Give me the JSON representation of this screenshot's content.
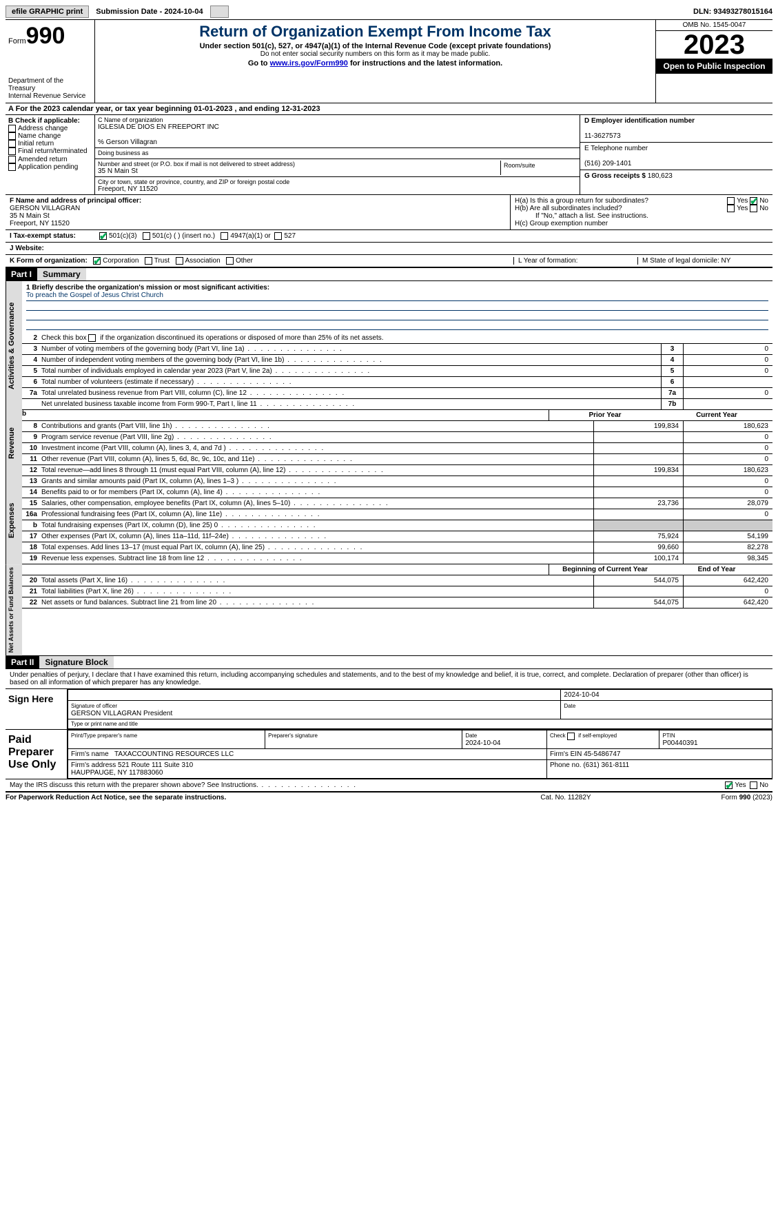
{
  "topbar": {
    "efile": "efile GRAPHIC print",
    "submission": "Submission Date - 2024-10-04",
    "dln": "DLN: 93493278015164"
  },
  "header": {
    "form_prefix": "Form",
    "form_num": "990",
    "dept": "Department of the Treasury\nInternal Revenue Service",
    "title": "Return of Organization Exempt From Income Tax",
    "line1": "Under section 501(c), 527, or 4947(a)(1) of the Internal Revenue Code (except private foundations)",
    "line2": "Do not enter social security numbers on this form as it may be made public.",
    "line3_pre": "Go to ",
    "line3_link": "www.irs.gov/Form990",
    "line3_post": " for instructions and the latest information.",
    "omb": "OMB No. 1545-0047",
    "year": "2023",
    "open": "Open to Public Inspection"
  },
  "rowA": "A For the 2023 calendar year, or tax year beginning 01-01-2023   , and ending 12-31-2023",
  "boxB": {
    "label": "B Check if applicable:",
    "items": [
      "Address change",
      "Name change",
      "Initial return",
      "Final return/terminated",
      "Amended return",
      "Application pending"
    ]
  },
  "boxC": {
    "label": "C Name of organization",
    "name": "IGLESIA DE DIOS EN FREEPORT INC",
    "care": "% Gerson Villagran",
    "dba_label": "Doing business as",
    "addr_label": "Number and street (or P.O. box if mail is not delivered to street address)",
    "room_label": "Room/suite",
    "addr": "35 N Main St",
    "city_label": "City or town, state or province, country, and ZIP or foreign postal code",
    "city": "Freeport, NY  11520"
  },
  "boxD": {
    "label": "D Employer identification number",
    "val": "11-3627573"
  },
  "boxE": {
    "label": "E Telephone number",
    "val": "(516) 209-1401"
  },
  "boxG": {
    "label": "G Gross receipts $",
    "val": "180,623"
  },
  "boxF": {
    "label": "F  Name and address of principal officer:",
    "name": "GERSON VILLAGRAN",
    "addr1": "35 N Main St",
    "addr2": "Freeport, NY  11520"
  },
  "boxH": {
    "a": "H(a)  Is this a group return for subordinates?",
    "b": "H(b)  Are all subordinates included?",
    "bnote": "If \"No,\" attach a list. See instructions.",
    "c": "H(c)  Group exemption number"
  },
  "rowI": {
    "label": "I  Tax-exempt status:",
    "o1": "501(c)(3)",
    "o2": "501(c) (  ) (insert no.)",
    "o3": "4947(a)(1) or",
    "o4": "527"
  },
  "rowJ": "J  Website:",
  "rowK": {
    "label": "K Form of organization:",
    "opts": [
      "Corporation",
      "Trust",
      "Association",
      "Other"
    ],
    "L": "L Year of formation:",
    "M": "M State of legal domicile: NY"
  },
  "part1": {
    "num": "Part I",
    "title": "Summary"
  },
  "sections": {
    "gov": "Activities & Governance",
    "rev": "Revenue",
    "exp": "Expenses",
    "net": "Net Assets or Fund Balances"
  },
  "line1": {
    "label": "1  Briefly describe the organization's mission or most significant activities:",
    "text": "To preach the Gospel of Jesus Christ Church"
  },
  "line2": "Check this box       if the organization discontinued its operations or disposed of more than 25% of its net assets.",
  "govrows": [
    {
      "n": "3",
      "t": "Number of voting members of the governing body (Part VI, line 1a)",
      "b": "3",
      "v": "0"
    },
    {
      "n": "4",
      "t": "Number of independent voting members of the governing body (Part VI, line 1b)",
      "b": "4",
      "v": "0"
    },
    {
      "n": "5",
      "t": "Total number of individuals employed in calendar year 2023 (Part V, line 2a)",
      "b": "5",
      "v": "0"
    },
    {
      "n": "6",
      "t": "Total number of volunteers (estimate if necessary)",
      "b": "6",
      "v": ""
    },
    {
      "n": "7a",
      "t": "Total unrelated business revenue from Part VIII, column (C), line 12",
      "b": "7a",
      "v": "0"
    },
    {
      "n": "",
      "t": "Net unrelated business taxable income from Form 990-T, Part I, line 11",
      "b": "7b",
      "v": ""
    }
  ],
  "colhdr": {
    "prior": "Prior Year",
    "curr": "Current Year",
    "beg": "Beginning of Current Year",
    "end": "End of Year"
  },
  "revrows": [
    {
      "n": "8",
      "t": "Contributions and grants (Part VIII, line 1h)",
      "p": "199,834",
      "c": "180,623"
    },
    {
      "n": "9",
      "t": "Program service revenue (Part VIII, line 2g)",
      "p": "",
      "c": "0"
    },
    {
      "n": "10",
      "t": "Investment income (Part VIII, column (A), lines 3, 4, and 7d )",
      "p": "",
      "c": "0"
    },
    {
      "n": "11",
      "t": "Other revenue (Part VIII, column (A), lines 5, 6d, 8c, 9c, 10c, and 11e)",
      "p": "",
      "c": "0"
    },
    {
      "n": "12",
      "t": "Total revenue—add lines 8 through 11 (must equal Part VIII, column (A), line 12)",
      "p": "199,834",
      "c": "180,623"
    }
  ],
  "exprows": [
    {
      "n": "13",
      "t": "Grants and similar amounts paid (Part IX, column (A), lines 1–3 )",
      "p": "",
      "c": "0"
    },
    {
      "n": "14",
      "t": "Benefits paid to or for members (Part IX, column (A), line 4)",
      "p": "",
      "c": "0"
    },
    {
      "n": "15",
      "t": "Salaries, other compensation, employee benefits (Part IX, column (A), lines 5–10)",
      "p": "23,736",
      "c": "28,079"
    },
    {
      "n": "16a",
      "t": "Professional fundraising fees (Part IX, column (A), line 11e)",
      "p": "",
      "c": "0"
    },
    {
      "n": "b",
      "t": "Total fundraising expenses (Part IX, column (D), line 25) 0",
      "p": "shade",
      "c": "shade"
    },
    {
      "n": "17",
      "t": "Other expenses (Part IX, column (A), lines 11a–11d, 11f–24e)",
      "p": "75,924",
      "c": "54,199"
    },
    {
      "n": "18",
      "t": "Total expenses. Add lines 13–17 (must equal Part IX, column (A), line 25)",
      "p": "99,660",
      "c": "82,278"
    },
    {
      "n": "19",
      "t": "Revenue less expenses. Subtract line 18 from line 12",
      "p": "100,174",
      "c": "98,345"
    }
  ],
  "netrows": [
    {
      "n": "20",
      "t": "Total assets (Part X, line 16)",
      "p": "544,075",
      "c": "642,420"
    },
    {
      "n": "21",
      "t": "Total liabilities (Part X, line 26)",
      "p": "",
      "c": "0"
    },
    {
      "n": "22",
      "t": "Net assets or fund balances. Subtract line 21 from line 20",
      "p": "544,075",
      "c": "642,420"
    }
  ],
  "part2": {
    "num": "Part II",
    "title": "Signature Block"
  },
  "perjury": "Under penalties of perjury, I declare that I have examined this return, including accompanying schedules and statements, and to the best of my knowledge and belief, it is true, correct, and complete. Declaration of preparer (other than officer) is based on all information of which preparer has any knowledge.",
  "sign": {
    "here": "Sign Here",
    "sigoff": "Signature of officer",
    "date": "Date",
    "datev": "2024-10-04",
    "officer": "GERSON VILLAGRAN  President",
    "typelbl": "Type or print name and title"
  },
  "paid": {
    "label": "Paid Preparer Use Only",
    "h1": "Print/Type preparer's name",
    "h2": "Preparer's signature",
    "h3": "Date",
    "h3v": "2024-10-04",
    "h4": "Check       if self-employed",
    "h5": "PTIN",
    "h5v": "P00440391",
    "firm": "Firm's name",
    "firmv": "TAXACCOUNTING RESOURCES LLC",
    "ein": "Firm's EIN",
    "einv": "45-5486747",
    "addr": "Firm's address",
    "addrv": "521 Route 111 Suite 310\nHAUPPAUGE, NY  117883060",
    "phone": "Phone no.",
    "phonev": "(631) 361-8111"
  },
  "discuss": "May the IRS discuss this return with the preparer shown above? See Instructions.",
  "footer": {
    "l": "For Paperwork Reduction Act Notice, see the separate instructions.",
    "c": "Cat. No. 11282Y",
    "r": "Form 990 (2023)"
  },
  "yesno": {
    "yes": "Yes",
    "no": "No"
  }
}
